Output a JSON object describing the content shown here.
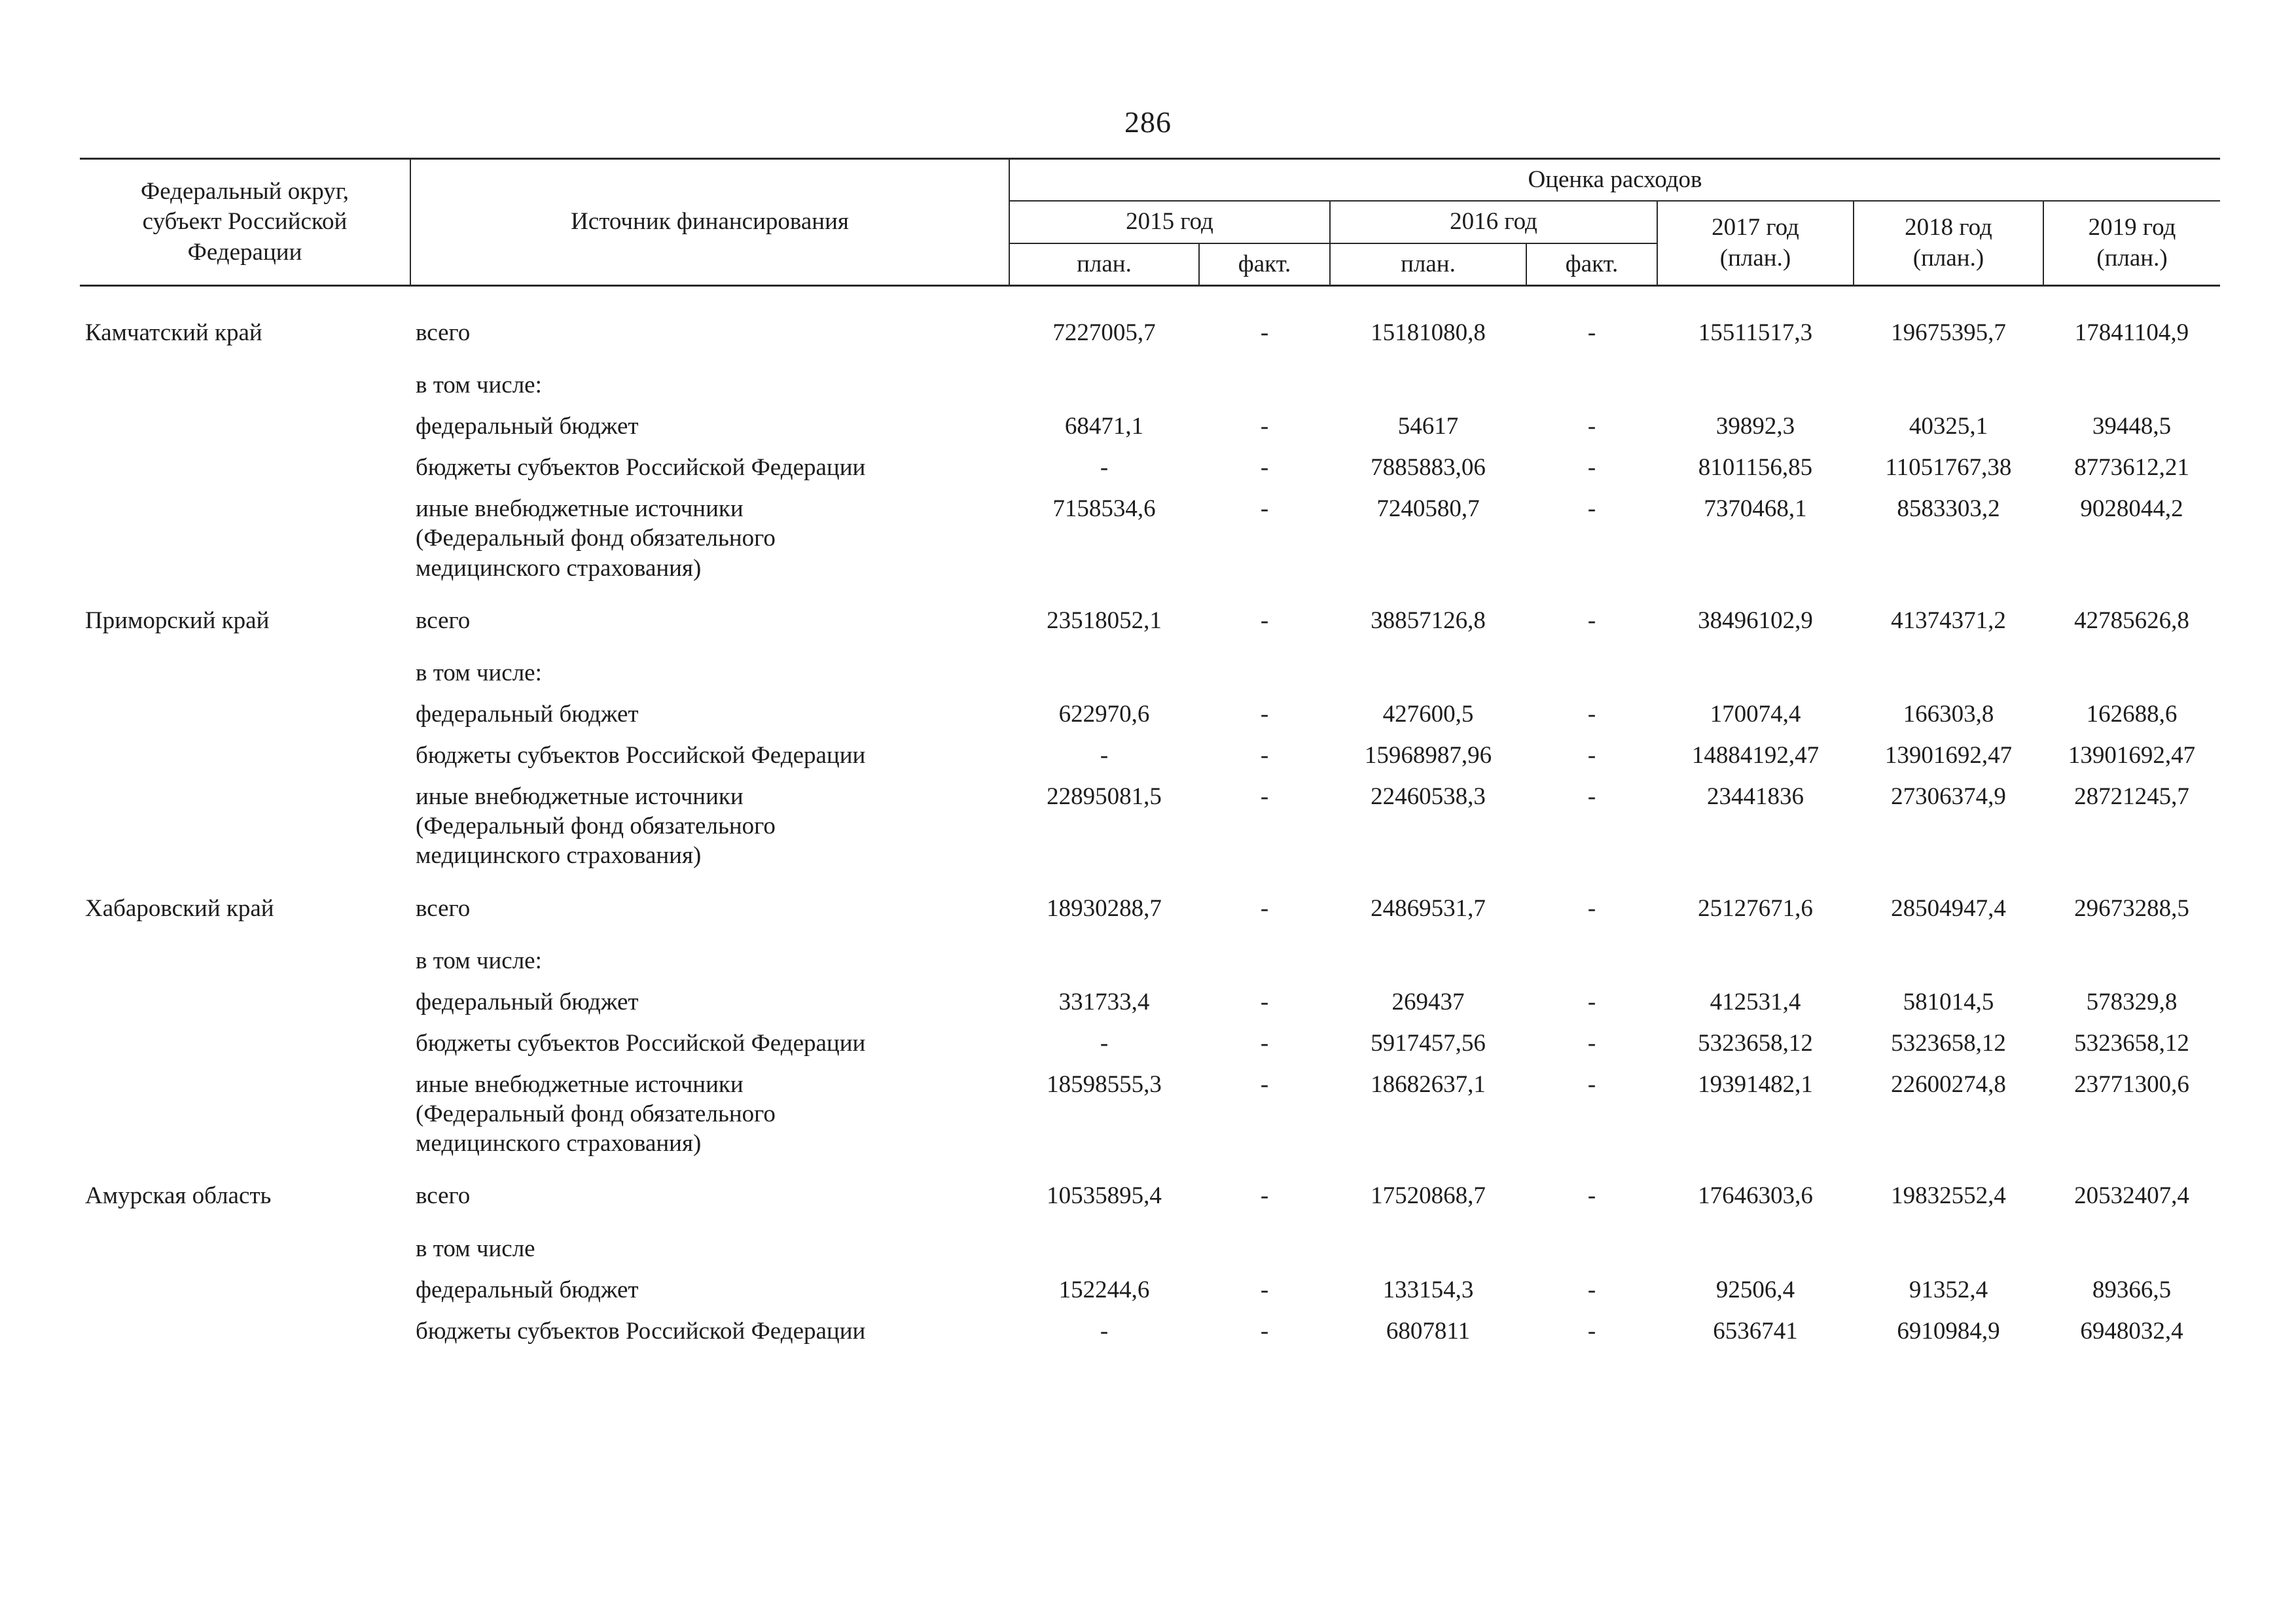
{
  "page": {
    "number": "286"
  },
  "table": {
    "headers": {
      "region": "Федеральный округ,\nсубъект Российской\nФедерации",
      "source": "Источник финансирования",
      "expenses": "Оценка расходов",
      "year2015": "2015 год",
      "year2016": "2016 год",
      "year2017": "2017 год",
      "year2018": "2018 год",
      "year2019": "2019 год",
      "plan": "план.",
      "fact": "факт.",
      "plan_paren": "(план.)"
    },
    "rows": [
      {
        "kind": "total",
        "region": "Камчатский край",
        "source": "всего",
        "values": [
          "7227005,7",
          "-",
          "15181080,8",
          "-",
          "15511517,3",
          "19675395,7",
          "17841104,9"
        ]
      },
      {
        "kind": "note",
        "region": "",
        "source": "в том числе:",
        "values": [
          "",
          "",
          "",
          "",
          "",
          "",
          ""
        ]
      },
      {
        "kind": "item",
        "region": "",
        "source": "федеральный бюджет",
        "values": [
          "68471,1",
          "-",
          "54617",
          "-",
          "39892,3",
          "40325,1",
          "39448,5"
        ]
      },
      {
        "kind": "item",
        "region": "",
        "source": "бюджеты субъектов Российской Федерации",
        "values": [
          "-",
          "-",
          "7885883,06",
          "-",
          "8101156,85",
          "11051767,38",
          "8773612,21"
        ]
      },
      {
        "kind": "item",
        "region": "",
        "source": "иные внебюджетные источники\n(Федеральный фонд обязательного\nмедицинского страхования)",
        "values": [
          "7158534,6",
          "-",
          "7240580,7",
          "-",
          "7370468,1",
          "8583303,2",
          "9028044,2"
        ]
      },
      {
        "kind": "total",
        "region": "Приморский край",
        "source": "всего",
        "values": [
          "23518052,1",
          "-",
          "38857126,8",
          "-",
          "38496102,9",
          "41374371,2",
          "42785626,8"
        ]
      },
      {
        "kind": "note",
        "region": "",
        "source": "в том числе:",
        "values": [
          "",
          "",
          "",
          "",
          "",
          "",
          ""
        ]
      },
      {
        "kind": "item",
        "region": "",
        "source": "федеральный бюджет",
        "values": [
          "622970,6",
          "-",
          "427600,5",
          "-",
          "170074,4",
          "166303,8",
          "162688,6"
        ]
      },
      {
        "kind": "item",
        "region": "",
        "source": "бюджеты субъектов Российской Федерации",
        "values": [
          "-",
          "-",
          "15968987,96",
          "-",
          "14884192,47",
          "13901692,47",
          "13901692,47"
        ]
      },
      {
        "kind": "item",
        "region": "",
        "source": "иные внебюджетные источники\n(Федеральный фонд обязательного\nмедицинского страхования)",
        "values": [
          "22895081,5",
          "-",
          "22460538,3",
          "-",
          "23441836",
          "27306374,9",
          "28721245,7"
        ]
      },
      {
        "kind": "total",
        "region": "Хабаровский край",
        "source": "всего",
        "values": [
          "18930288,7",
          "-",
          "24869531,7",
          "-",
          "25127671,6",
          "28504947,4",
          "29673288,5"
        ]
      },
      {
        "kind": "note",
        "region": "",
        "source": "в том числе:",
        "values": [
          "",
          "",
          "",
          "",
          "",
          "",
          ""
        ]
      },
      {
        "kind": "item",
        "region": "",
        "source": "федеральный бюджет",
        "values": [
          "331733,4",
          "-",
          "269437",
          "-",
          "412531,4",
          "581014,5",
          "578329,8"
        ]
      },
      {
        "kind": "item",
        "region": "",
        "source": "бюджеты субъектов Российской Федерации",
        "values": [
          "-",
          "-",
          "5917457,56",
          "-",
          "5323658,12",
          "5323658,12",
          "5323658,12"
        ]
      },
      {
        "kind": "item",
        "region": "",
        "source": "иные внебюджетные источники\n(Федеральный фонд обязательного\nмедицинского страхования)",
        "values": [
          "18598555,3",
          "-",
          "18682637,1",
          "-",
          "19391482,1",
          "22600274,8",
          "23771300,6"
        ]
      },
      {
        "kind": "total",
        "region": "Амурская область",
        "source": "всего",
        "values": [
          "10535895,4",
          "-",
          "17520868,7",
          "-",
          "17646303,6",
          "19832552,4",
          "20532407,4"
        ]
      },
      {
        "kind": "note",
        "region": "",
        "source": "в том числе",
        "values": [
          "",
          "",
          "",
          "",
          "",
          "",
          ""
        ]
      },
      {
        "kind": "item",
        "region": "",
        "source": "федеральный бюджет",
        "values": [
          "152244,6",
          "-",
          "133154,3",
          "-",
          "92506,4",
          "91352,4",
          "89366,5"
        ]
      },
      {
        "kind": "item",
        "region": "",
        "source": "бюджеты субъектов Российской Федерации",
        "values": [
          "-",
          "-",
          "6807811",
          "-",
          "6536741",
          "6910984,9",
          "6948032,4"
        ]
      }
    ]
  }
}
